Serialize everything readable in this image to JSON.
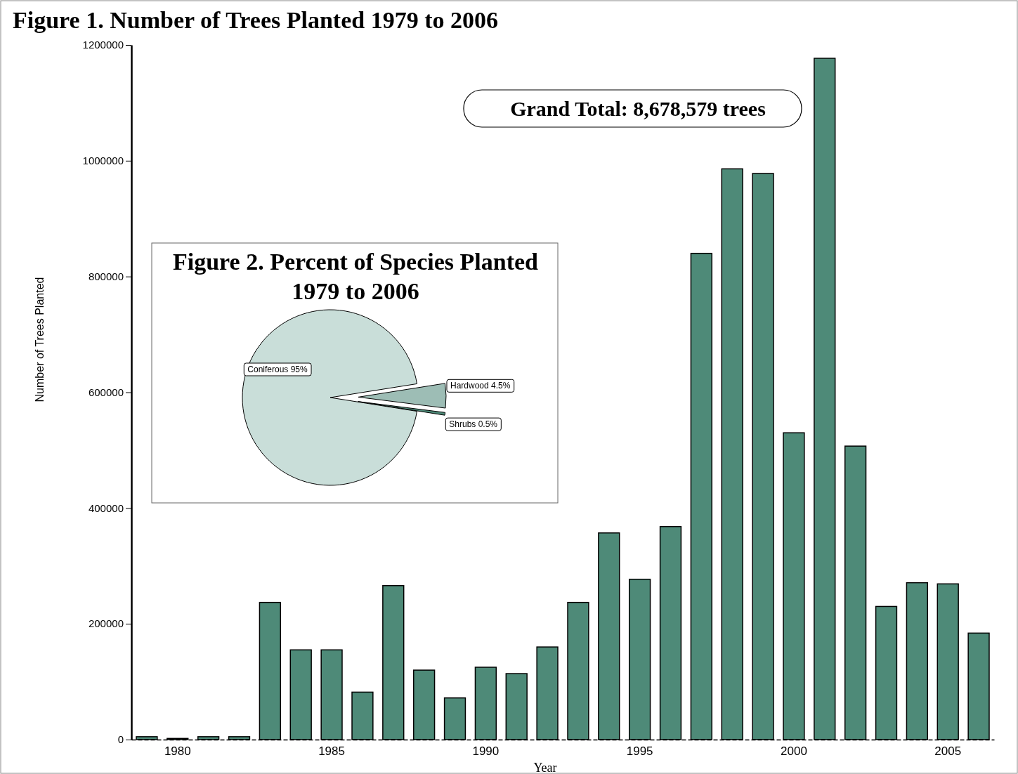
{
  "chart_data": [
    {
      "type": "bar",
      "title": "Figure 1.  Number of Trees Planted 1979 to 2006",
      "xlabel": "Year",
      "ylabel": "Number of Trees Planted",
      "categories": [
        null,
        "1980",
        null,
        null,
        null,
        null,
        "1985",
        null,
        null,
        null,
        null,
        "1990",
        null,
        null,
        null,
        null,
        "1995",
        null,
        null,
        null,
        null,
        "2000",
        null,
        null,
        null,
        null,
        "2005",
        null
      ],
      "values": [
        5000,
        2000,
        5000,
        5000,
        237000,
        155000,
        155000,
        82000,
        266000,
        120000,
        72000,
        125000,
        114000,
        160000,
        237000,
        357000,
        277000,
        368000,
        840000,
        986000,
        978000,
        530000,
        1177000,
        507000,
        230000,
        271000,
        269000,
        184000
      ],
      "color": "#4e8a78",
      "ylim": [
        0,
        1200000
      ],
      "yticks": [
        0,
        200000,
        400000,
        600000,
        800000,
        1000000,
        1200000
      ],
      "grid": false,
      "annotations": [
        "Grand Total:  8,678,579 trees"
      ]
    },
    {
      "type": "pie",
      "title": "Figure 2. Percent of Species Planted\n1979 to 2006",
      "categories": [
        "Coniferous",
        "Hardwood",
        "Shrubs"
      ],
      "values": [
        95,
        4.5,
        0.5
      ],
      "value_labels": [
        "95%",
        "4.5%",
        "0.5%"
      ],
      "colors": [
        "#c9ded9",
        "#9dbdb5",
        "#4e8a78"
      ]
    }
  ]
}
